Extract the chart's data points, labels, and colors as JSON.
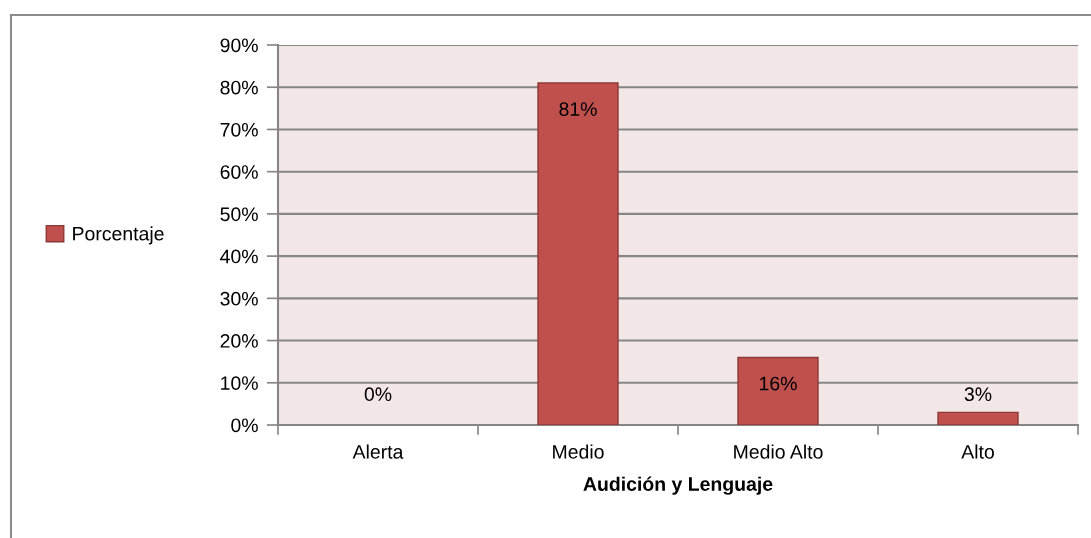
{
  "chart_data": {
    "type": "bar",
    "categories": [
      "Alerta",
      "Medio",
      "Medio Alto",
      "Alto"
    ],
    "series": [
      {
        "name": "Porcentaje",
        "color": "#c0504d",
        "values": [
          0,
          81,
          16,
          3
        ],
        "value_labels": [
          "0%",
          "81%",
          "16%",
          "3%"
        ]
      }
    ],
    "xlabel": "Audición y Lenguaje",
    "ylim": [
      0,
      90
    ],
    "yticks": [
      {
        "value": 0,
        "label": "0%"
      },
      {
        "value": 10,
        "label": "10%"
      },
      {
        "value": 20,
        "label": "20%"
      },
      {
        "value": 30,
        "label": "30%"
      },
      {
        "value": 40,
        "label": "40%"
      },
      {
        "value": 50,
        "label": "50%"
      },
      {
        "value": 60,
        "label": "60%"
      },
      {
        "value": 70,
        "label": "70%"
      },
      {
        "value": 80,
        "label": "80%"
      },
      {
        "value": 90,
        "label": "90%"
      }
    ],
    "grid": "y",
    "legend": "left"
  }
}
